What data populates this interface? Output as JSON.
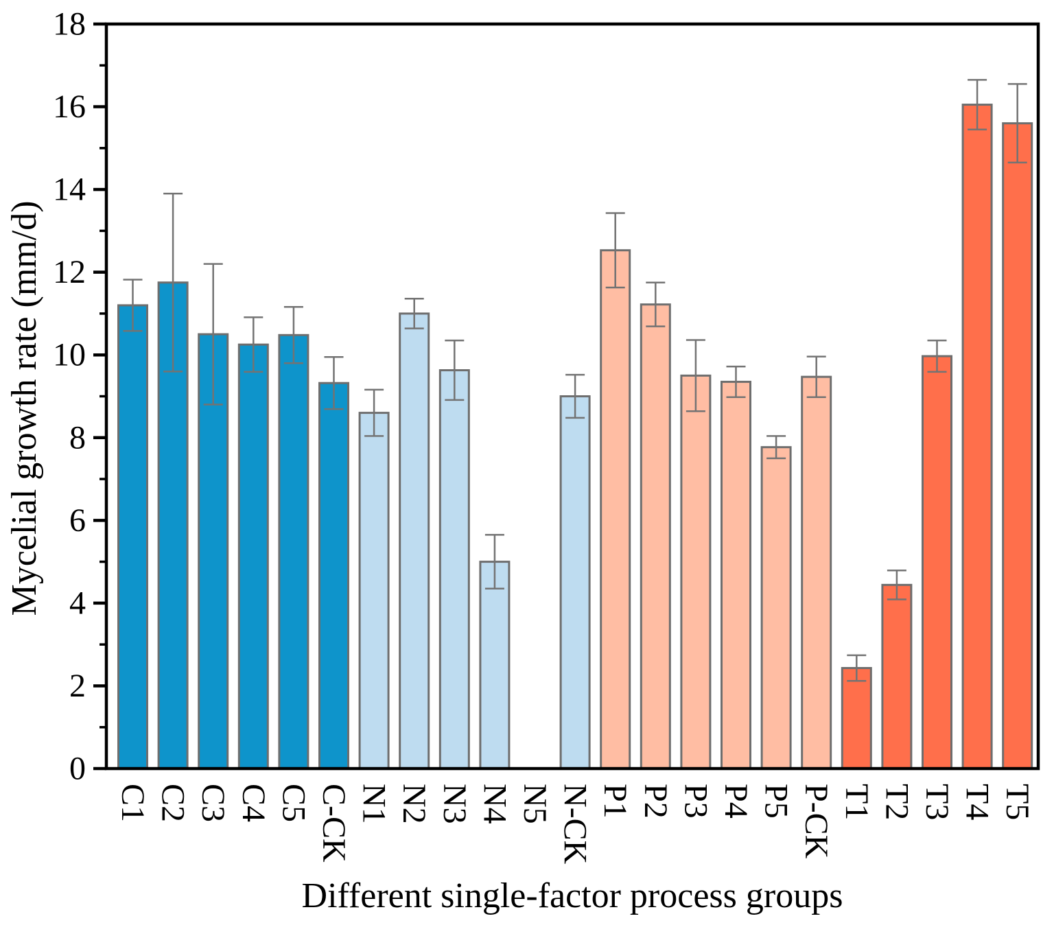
{
  "figure": {
    "background": "#ffffff"
  },
  "chart_data": {
    "type": "bar",
    "title": "",
    "xlabel": "Different single-factor process groups",
    "ylabel": "Mycelial growth rate (mm/d)",
    "ylim": [
      0,
      18
    ],
    "y_major_ticks": [
      0,
      2,
      4,
      6,
      8,
      10,
      12,
      14,
      16,
      18
    ],
    "y_minor_ticks": [
      1,
      3,
      5,
      7,
      9,
      11,
      13,
      15,
      17
    ],
    "grid": false,
    "legend_position": "none",
    "categories": [
      "C1",
      "C2",
      "C3",
      "C4",
      "C5",
      "C-CK",
      "N1",
      "N2",
      "N3",
      "N4",
      "N5",
      "N-CK",
      "P1",
      "P2",
      "P3",
      "P4",
      "P5",
      "P-CK",
      "T1",
      "T2",
      "T3",
      "T4",
      "T5"
    ],
    "values": [
      11.2,
      11.75,
      10.5,
      10.25,
      10.48,
      9.32,
      8.6,
      11.0,
      9.63,
      5.0,
      0,
      9.0,
      12.53,
      11.22,
      9.5,
      9.35,
      7.77,
      9.47,
      2.43,
      4.44,
      9.97,
      16.05,
      15.6
    ],
    "errors": [
      0.62,
      2.15,
      1.7,
      0.66,
      0.68,
      0.63,
      0.56,
      0.36,
      0.72,
      0.65,
      0,
      0.52,
      0.9,
      0.53,
      0.86,
      0.37,
      0.27,
      0.49,
      0.31,
      0.35,
      0.38,
      0.6,
      0.95
    ],
    "series_colors": {
      "C": "#0e94cb",
      "N": "#bedcf0",
      "P": "#ffbda3",
      "T": "#ff6f4b"
    }
  },
  "style": {
    "bar_edge_color": "#6e6e6e",
    "error_bar_color": "#737373",
    "axis_color": "#000000",
    "text_color": "#000000"
  }
}
